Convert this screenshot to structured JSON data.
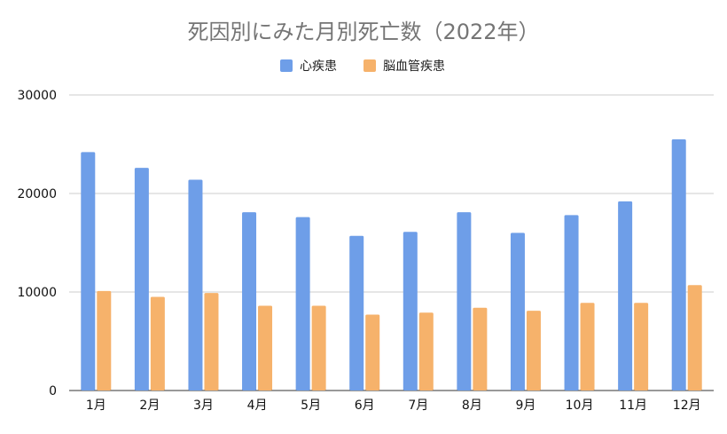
{
  "chart_data": {
    "type": "bar",
    "title": "死因別にみた月別死亡数（2022年）",
    "categories": [
      "1月",
      "2月",
      "3月",
      "4月",
      "5月",
      "6月",
      "7月",
      "8月",
      "9月",
      "10月",
      "11月",
      "12月"
    ],
    "series": [
      {
        "name": "心疾患",
        "color": "#6e9ee8",
        "values": [
          24200,
          22600,
          21400,
          18100,
          17600,
          15700,
          16100,
          18100,
          16000,
          17800,
          19200,
          25500
        ]
      },
      {
        "name": "脳血管疾患",
        "color": "#f6b26b",
        "values": [
          10100,
          9500,
          9900,
          8600,
          8600,
          7700,
          7900,
          8400,
          8100,
          8900,
          8900,
          10700
        ]
      }
    ],
    "ylim": [
      0,
      30000
    ],
    "yticks": [
      0,
      10000,
      20000,
      30000
    ],
    "grid": true,
    "legend": "top-center"
  }
}
